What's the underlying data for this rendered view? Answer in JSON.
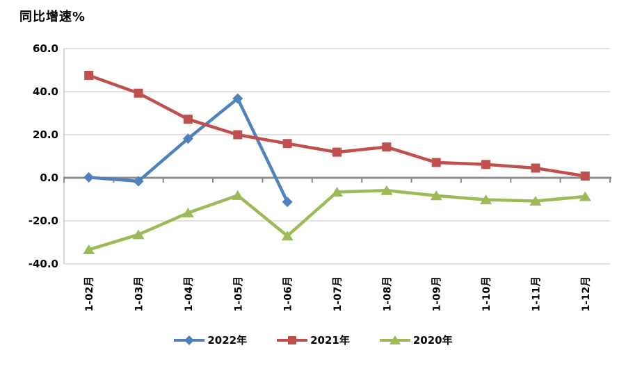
{
  "title": "同比增速%",
  "colors": {
    "series_blue": "#4F81BD",
    "series_red": "#C0504D",
    "series_green": "#9BBB59",
    "gridline": "#C6C6C6",
    "zero_axis": "#8C8C8C",
    "axis_line": "#BFBFBF",
    "text": "#000000",
    "background": "#FFFFFF"
  },
  "chart_data": {
    "type": "line",
    "title": "同比增速%",
    "categories": [
      "1-02月",
      "1-03月",
      "1-04月",
      "1-05月",
      "1-06月",
      "1-07月",
      "1-08月",
      "1-09月",
      "1-10月",
      "1-11月",
      "1-12月"
    ],
    "series": [
      {
        "name": "2022年",
        "color": "#4F81BD",
        "marker": "diamond",
        "values": [
          0.2,
          -1.6,
          18.2,
          36.8,
          -11.2,
          null,
          null,
          null,
          null,
          null,
          null
        ]
      },
      {
        "name": "2021年",
        "color": "#C0504D",
        "marker": "square",
        "values": [
          47.6,
          39.3,
          27.2,
          20.0,
          15.9,
          11.9,
          14.3,
          7.1,
          6.2,
          4.5,
          0.8
        ]
      },
      {
        "name": "2020年",
        "color": "#9BBB59",
        "marker": "triangle",
        "values": [
          -33.4,
          -26.4,
          -16.3,
          -8.2,
          -27.0,
          -6.6,
          -5.9,
          -8.3,
          -10.2,
          -10.8,
          -8.7
        ]
      }
    ],
    "ylim": [
      -40,
      60
    ],
    "yticks": [
      60,
      40,
      20,
      0,
      -20,
      -40
    ],
    "ytick_labels": [
      "60.0",
      "40.0",
      "20.0",
      "0.0",
      "-20.0",
      "-40.0"
    ],
    "grid": true,
    "zero_axis_emphasized": true,
    "legend_position": "bottom",
    "x_label_rotation": -90
  }
}
